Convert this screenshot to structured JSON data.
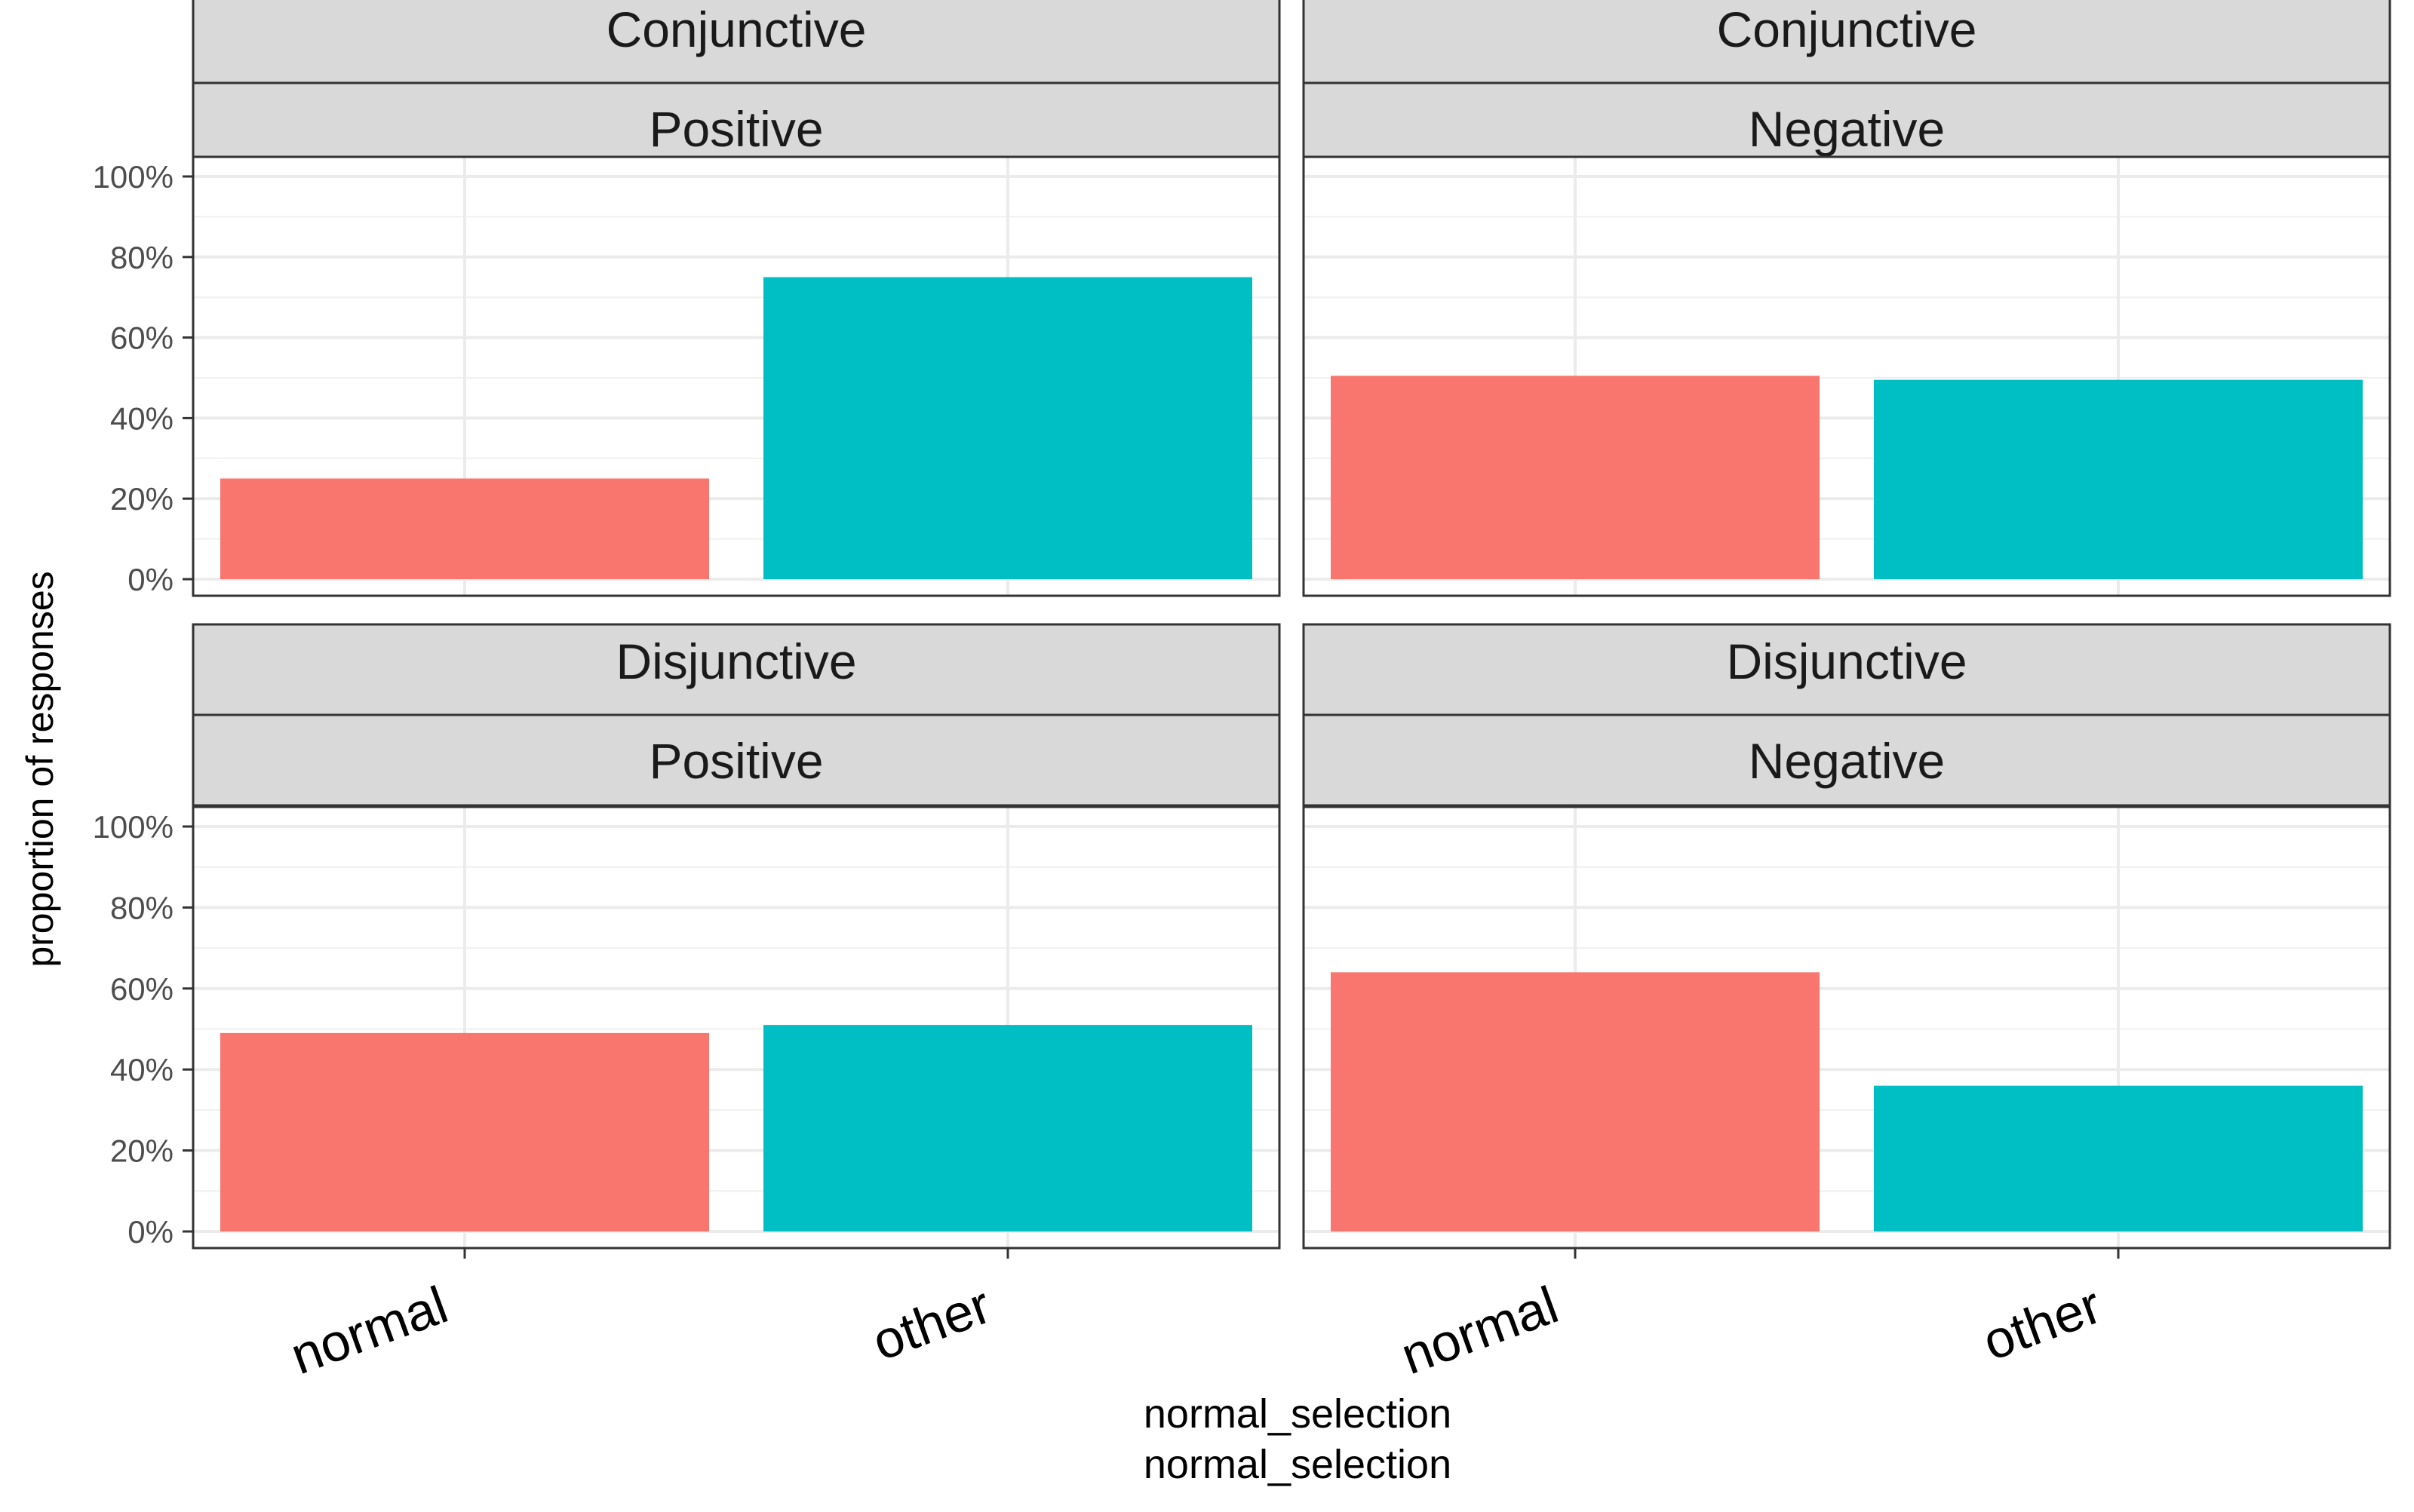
{
  "chart_data": {
    "type": "bar",
    "facet_layout": "2x2",
    "ylabel": "proportion of responses",
    "xlabel_lines": [
      "normal_selection",
      "normal_selection"
    ],
    "categories": [
      "normal",
      "other"
    ],
    "colors": {
      "normal": "#F8766D",
      "other": "#00BFC4"
    },
    "y_ticks": [
      "0%",
      "20%",
      "40%",
      "60%",
      "80%",
      "100%"
    ],
    "ylim": [
      0,
      1.05
    ],
    "grid": true,
    "legend": "none",
    "panels": [
      {
        "strip_top": "Conjunctive",
        "strip_bottom": "Positive",
        "values": [
          0.25,
          0.75
        ]
      },
      {
        "strip_top": "Conjunctive",
        "strip_bottom": "Negative",
        "values": [
          0.505,
          0.495
        ]
      },
      {
        "strip_top": "Disjunctive",
        "strip_bottom": "Positive",
        "values": [
          0.49,
          0.51
        ]
      },
      {
        "strip_top": "Disjunctive",
        "strip_bottom": "Negative",
        "values": [
          0.64,
          0.36
        ]
      }
    ]
  }
}
